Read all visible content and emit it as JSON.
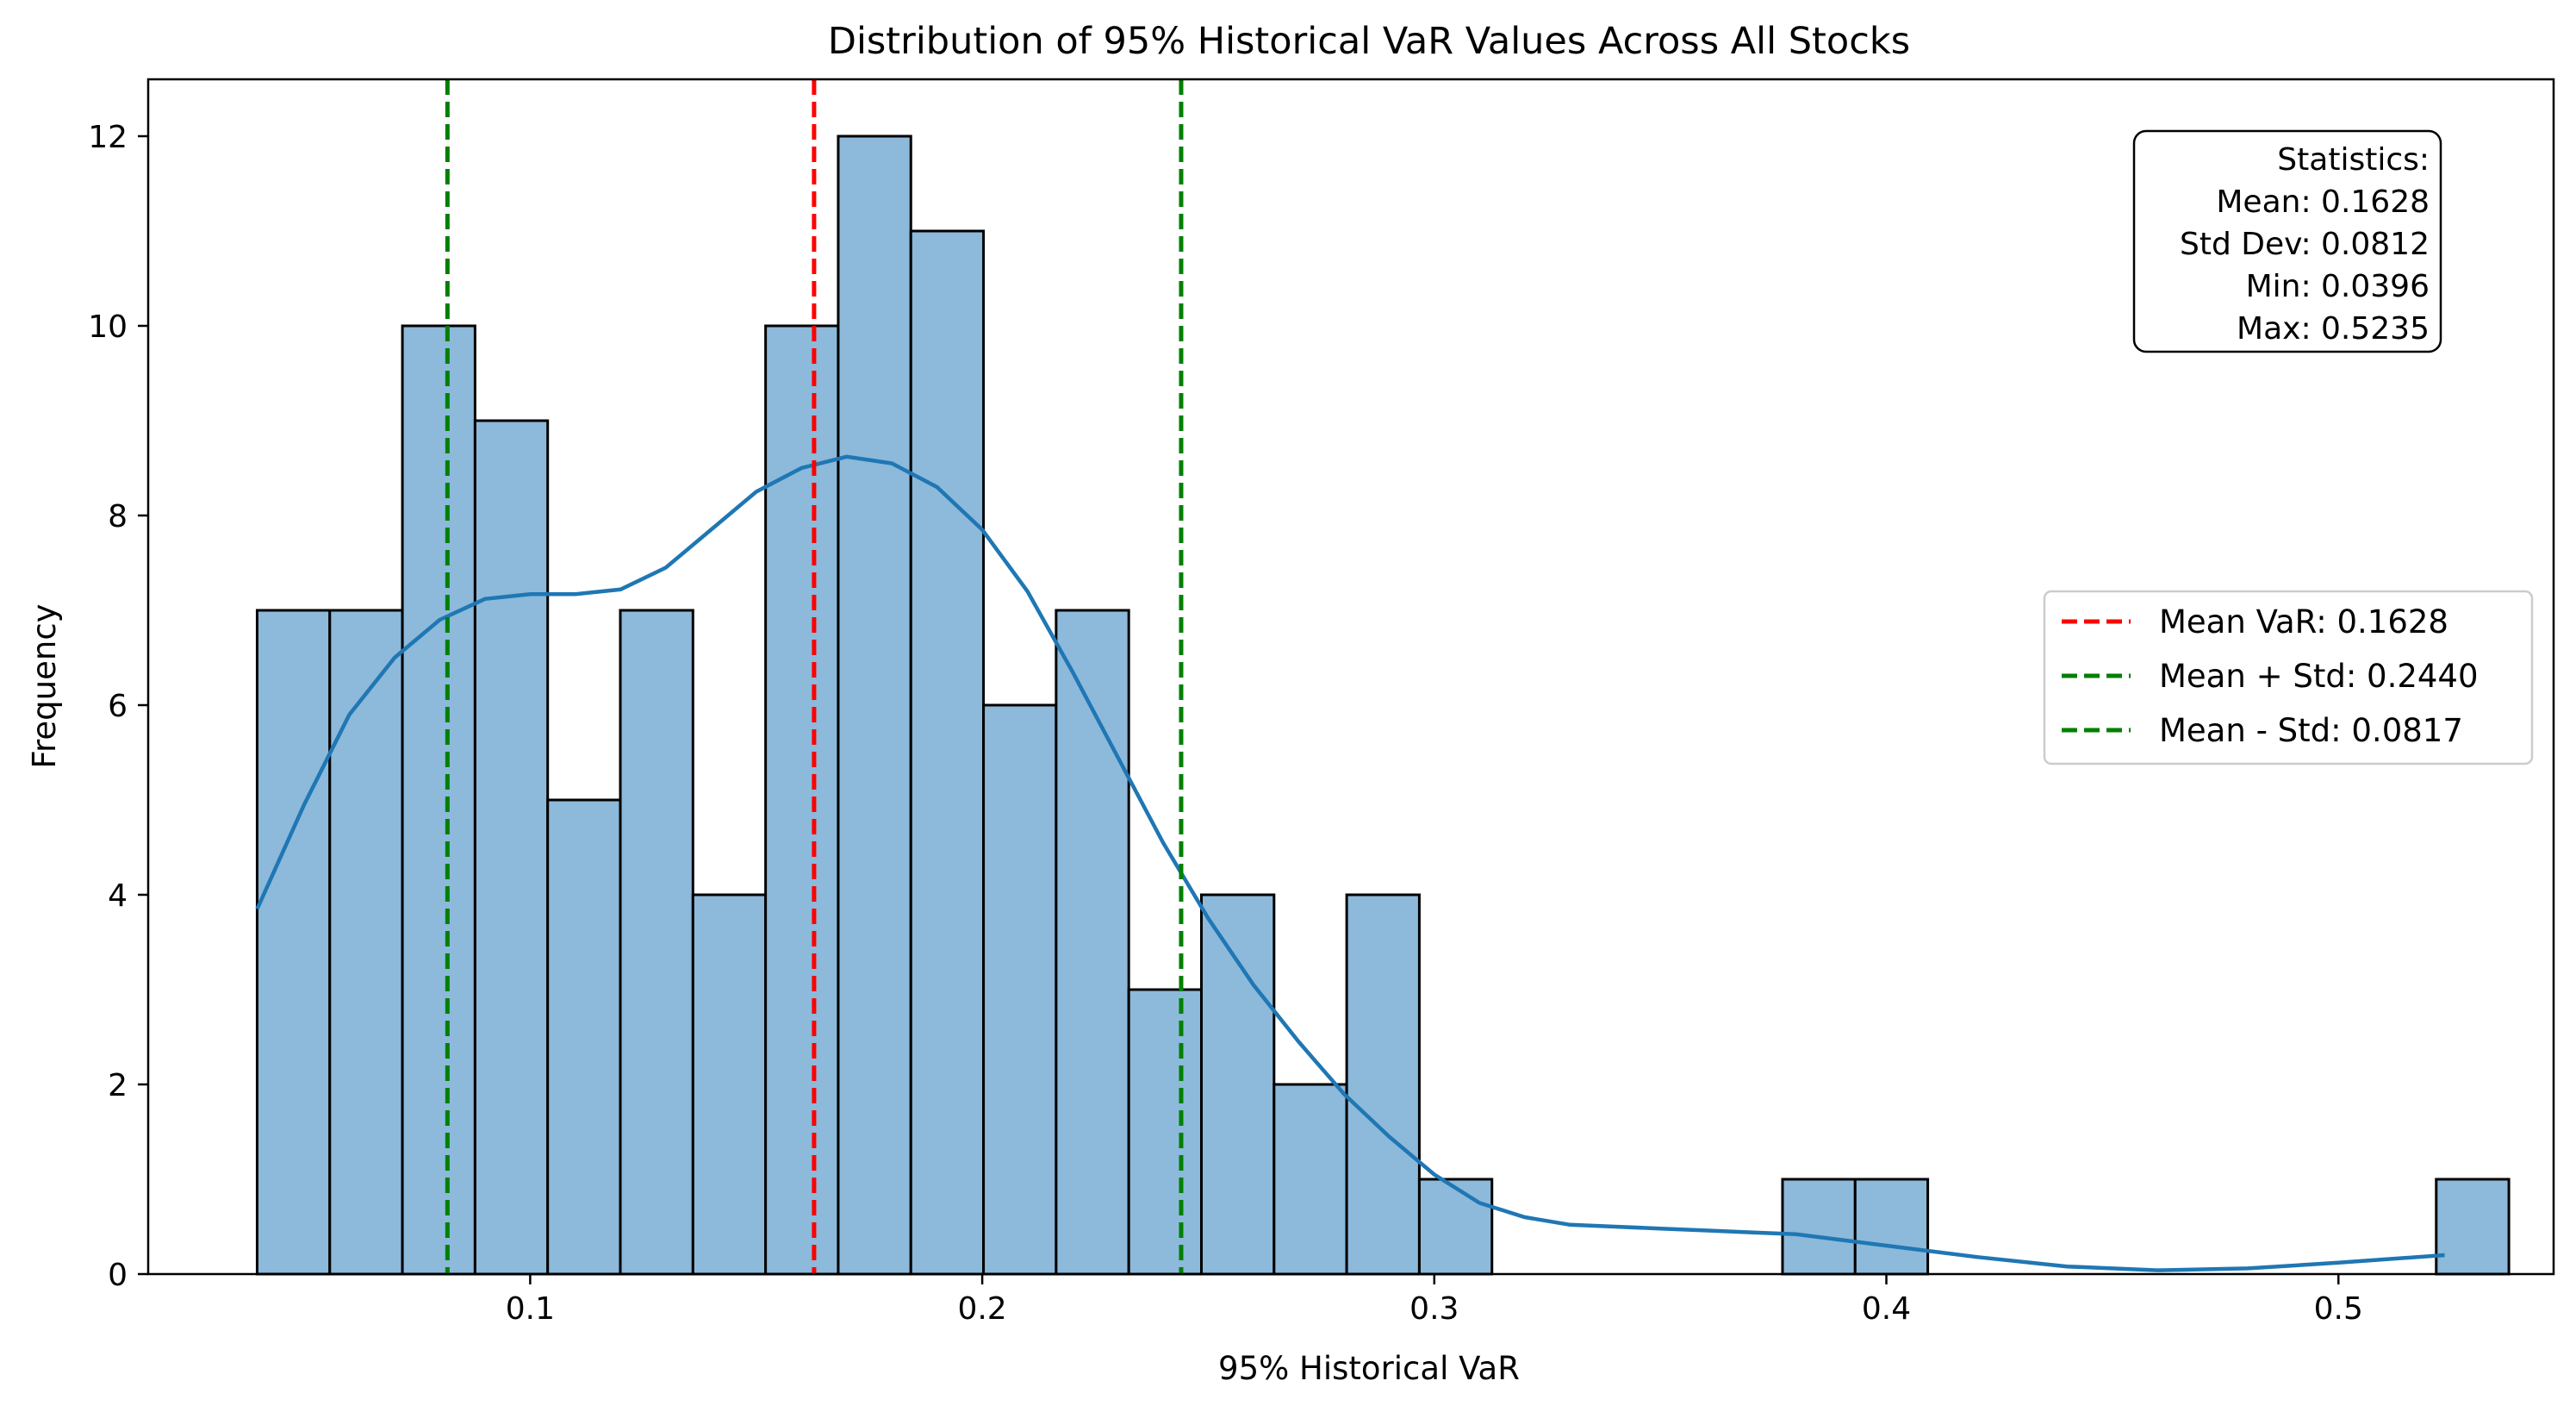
{
  "chart_data": {
    "type": "bar",
    "title": "Distribution of 95% Historical VaR Values Across All Stocks",
    "xlabel": "95% Historical VaR",
    "ylabel": "Frequency",
    "xlim": [
      0.0155,
      0.5476
    ],
    "ylim": [
      0,
      12.6
    ],
    "xticks": [
      0.1,
      0.2,
      0.3,
      0.4,
      0.5
    ],
    "xtick_labels": [
      "0.1",
      "0.2",
      "0.3",
      "0.4",
      "0.5"
    ],
    "yticks": [
      0,
      2,
      4,
      6,
      8,
      10,
      12
    ],
    "ytick_labels": [
      "0",
      "2",
      "4",
      "6",
      "8",
      "10",
      "12"
    ],
    "grid": false,
    "bins": {
      "start": 0.0396,
      "width": 0.016068,
      "counts": [
        7,
        7,
        10,
        9,
        5,
        7,
        4,
        10,
        12,
        11,
        6,
        7,
        3,
        4,
        2,
        4,
        1,
        0,
        0,
        0,
        0,
        1,
        1,
        0,
        0,
        0,
        0,
        0,
        0,
        0,
        1
      ],
      "fill_color": "#8db9da",
      "edge_color": "#000000"
    },
    "kde": {
      "color": "#1f77b4",
      "x": [
        0.0396,
        0.05,
        0.06,
        0.07,
        0.08,
        0.09,
        0.1,
        0.11,
        0.12,
        0.13,
        0.14,
        0.15,
        0.16,
        0.17,
        0.18,
        0.19,
        0.2,
        0.21,
        0.22,
        0.23,
        0.24,
        0.25,
        0.26,
        0.27,
        0.28,
        0.29,
        0.3,
        0.31,
        0.32,
        0.33,
        0.34,
        0.35,
        0.36,
        0.37,
        0.38,
        0.39,
        0.4,
        0.42,
        0.44,
        0.46,
        0.48,
        0.5,
        0.5235
      ],
      "y": [
        3.85,
        4.95,
        5.9,
        6.5,
        6.9,
        7.12,
        7.17,
        7.17,
        7.22,
        7.45,
        7.85,
        8.25,
        8.5,
        8.62,
        8.55,
        8.3,
        7.85,
        7.2,
        6.35,
        5.45,
        4.55,
        3.75,
        3.05,
        2.45,
        1.9,
        1.45,
        1.05,
        0.75,
        0.6,
        0.52,
        0.5,
        0.48,
        0.46,
        0.44,
        0.42,
        0.36,
        0.3,
        0.18,
        0.08,
        0.04,
        0.06,
        0.12,
        0.2
      ]
    },
    "lines": [
      {
        "name": "Mean VaR: 0.1628",
        "x": 0.1628,
        "color": "#ff0000",
        "style": "dashed"
      },
      {
        "name": "Mean + Std: 0.2440",
        "x": 0.244,
        "color": "#008000",
        "style": "dashed"
      },
      {
        "name": "Mean - Std: 0.0817",
        "x": 0.0817,
        "color": "#008000",
        "style": "dashed"
      }
    ],
    "legend_placement": "center-right",
    "stats_box": {
      "placement": "top-right",
      "lines": [
        "Statistics:",
        "Mean: 0.1628",
        "Std Dev: 0.0812",
        "Min: 0.0396",
        "Max: 0.5235"
      ]
    }
  }
}
